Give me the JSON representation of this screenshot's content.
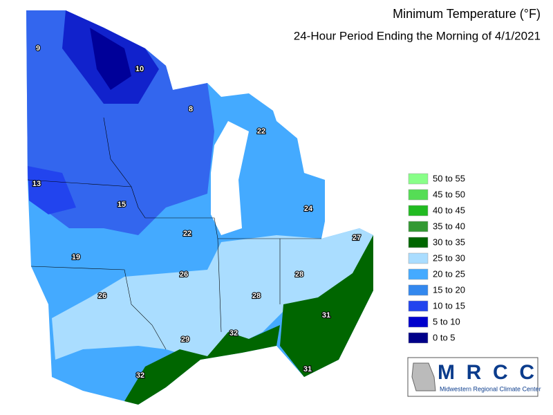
{
  "header": {
    "title": "Minimum Temperature (°F)",
    "subtitle": "24-Hour Period Ending the Morning of 4/1/2021"
  },
  "legend": {
    "items": [
      {
        "label": "50 to 55",
        "color": "#88ff88"
      },
      {
        "label": "45 to 50",
        "color": "#55dd55"
      },
      {
        "label": "40 to 45",
        "color": "#22bb22"
      },
      {
        "label": "35 to 40",
        "color": "#339933"
      },
      {
        "label": "30 to 35",
        "color": "#006600"
      },
      {
        "label": "25 to 30",
        "color": "#aaddff"
      },
      {
        "label": "20 to 25",
        "color": "#44aaff"
      },
      {
        "label": "15 to 20",
        "color": "#3388ee"
      },
      {
        "label": "10 to 15",
        "color": "#2244ee"
      },
      {
        "label": "5 to 10",
        "color": "#0000cc"
      },
      {
        "label": "0 to 5",
        "color": "#000088"
      }
    ]
  },
  "map": {
    "labels": [
      "9",
      "10",
      "8",
      "22",
      "13",
      "15",
      "24",
      "22",
      "27",
      "19",
      "28",
      "26",
      "26",
      "28",
      "31",
      "32",
      "29",
      "31",
      "32"
    ]
  },
  "logo": {
    "name": "MRCC",
    "full_name": "Midwestern Regional Climate Center"
  }
}
